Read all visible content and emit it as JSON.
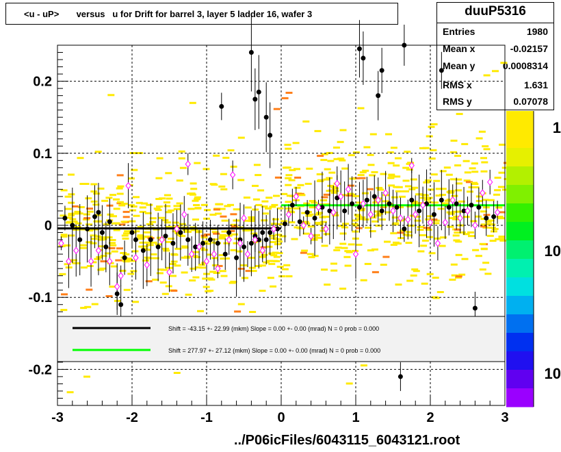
{
  "title": "<u - uP>       versus   u for Drift for barrel 3, layer 5 ladder 16, wafer 3",
  "stats": {
    "name": "duuP5316",
    "rows": [
      {
        "label": "Entries",
        "value": "1980"
      },
      {
        "label": "Mean x",
        "value": "-0.02157"
      },
      {
        "label": "Mean y",
        "value": "0.0008314"
      },
      {
        "label": "RMS x",
        "value": "1.631"
      },
      {
        "label": "RMS y",
        "value": "0.07078"
      }
    ]
  },
  "legend": {
    "entries": [
      {
        "color": "#000000",
        "text": "Shift =   -43.15 +- 22.99 (mkm) Slope =     0.00 +- 0.00 (mrad)  N = 0 prob = 0.000"
      },
      {
        "color": "#00ff00",
        "text": "Shift =   277.97 +- 27.12 (mkm) Slope =     0.00 +- 0.00 (mrad)  N = 0 prob = 0.000"
      }
    ]
  },
  "footer": "../P06icFiles/6043115_6043121.root",
  "colors": {
    "heat_yellow": "#ffea00",
    "heat_orange": "#ff7f1a",
    "mean_marker": "#000000",
    "alt_marker": "#ff00ff",
    "fit_black": "#000000",
    "fit_green": "#00ff00"
  },
  "chart_data": {
    "type": "scatter",
    "xlim": [
      -3,
      3
    ],
    "ylim": [
      -0.25,
      0.25
    ],
    "x_ticks": [
      -3,
      -2,
      -1,
      0,
      1,
      2,
      3
    ],
    "x_tick_labels": [
      "-3",
      "-2",
      "-1",
      "0",
      "1",
      "2",
      "3"
    ],
    "y_ticks": [
      -0.2,
      -0.1,
      0,
      0.1,
      0.2
    ],
    "y_tick_labels": [
      "-0.2",
      "-0.1",
      "0",
      "0.1",
      "0.2"
    ],
    "grid": true,
    "colorbar": {
      "scale": "log",
      "tick_labels": [
        "1",
        "10",
        "10"
      ]
    },
    "fit_lines": [
      {
        "x": [
          -3,
          0
        ],
        "y": [
          -0.0043,
          -0.0043
        ],
        "color": "black"
      },
      {
        "x": [
          0,
          3
        ],
        "y": [
          0.0278,
          0.0278
        ],
        "color": "green"
      }
    ],
    "series": [
      {
        "marker": "filled-circle",
        "x": [
          -2.9,
          -2.8,
          -2.7,
          -2.6,
          -2.5,
          -2.45,
          -2.4,
          -2.35,
          -2.3,
          -2.2,
          -2.15,
          -2.1,
          -2.0,
          -1.95,
          -1.85,
          -1.75,
          -1.65,
          -1.55,
          -1.45,
          -1.35,
          -1.25,
          -1.15,
          -1.05,
          -0.95,
          -0.85,
          -0.75,
          -0.7,
          -0.6,
          -0.55,
          -0.5,
          -0.4,
          -0.35,
          -0.3,
          -0.25,
          -0.2,
          -0.15,
          -0.05,
          0.05,
          0.15,
          0.25,
          0.35,
          0.45,
          0.55,
          0.65,
          0.75,
          0.85,
          0.95,
          1.05,
          1.15,
          1.25,
          1.35,
          1.45,
          1.55,
          1.65,
          1.75,
          1.85,
          1.95,
          2.05,
          2.15,
          2.25,
          2.35,
          2.45,
          2.55,
          2.65,
          2.75,
          2.85,
          -0.8,
          -0.4,
          -0.3,
          -0.2,
          -0.15,
          -0.35,
          1.05,
          1.1,
          1.3,
          1.35,
          1.65,
          2.15,
          2.6,
          1.6
        ],
        "y": [
          0.01,
          0.0,
          -0.02,
          -0.005,
          0.012,
          0.018,
          -0.01,
          -0.03,
          0.005,
          -0.095,
          -0.11,
          -0.045,
          -0.01,
          -0.02,
          -0.035,
          -0.02,
          -0.03,
          -0.015,
          -0.025,
          -0.01,
          -0.02,
          -0.03,
          -0.025,
          -0.02,
          -0.025,
          -0.04,
          -0.01,
          -0.045,
          -0.02,
          -0.03,
          -0.025,
          -0.015,
          -0.02,
          -0.01,
          -0.02,
          -0.01,
          -0.005,
          0.002,
          0.028,
          0.005,
          0.018,
          0.01,
          0.025,
          0.02,
          0.038,
          0.02,
          0.03,
          0.025,
          0.035,
          0.04,
          0.02,
          0.03,
          0.025,
          -0.005,
          0.035,
          0.02,
          0.03,
          0.015,
          0.035,
          0.025,
          0.03,
          0.02,
          0.028,
          0.025,
          0.01,
          0.012,
          0.165,
          0.24,
          0.185,
          0.15,
          0.125,
          0.175,
          0.245,
          0.232,
          0.18,
          0.215,
          0.25,
          0.215,
          -0.115,
          -0.21
        ]
      },
      {
        "marker": "open-diamond",
        "x": [
          -2.95,
          -2.85,
          -2.75,
          -2.55,
          -2.45,
          -2.3,
          -2.2,
          -2.05,
          -1.95,
          -1.8,
          -1.6,
          -1.5,
          -1.4,
          -1.3,
          -1.2,
          -1.1,
          -1.0,
          -0.9,
          -0.7,
          -0.65,
          -0.5,
          -0.45,
          -0.35,
          -0.25,
          -0.1,
          0.1,
          0.2,
          0.3,
          0.4,
          0.5,
          0.6,
          0.7,
          0.8,
          0.9,
          1.0,
          1.1,
          1.2,
          1.3,
          1.4,
          1.5,
          1.6,
          1.7,
          1.8,
          1.9,
          2.0,
          2.1,
          2.2,
          2.3,
          2.4,
          2.5,
          2.6,
          2.7,
          2.8,
          2.9,
          -1.25,
          -2.15,
          -0.85,
          -0.55,
          0.75,
          1.75
        ],
        "y": [
          -0.025,
          -0.05,
          -0.035,
          -0.05,
          -0.035,
          -0.05,
          -0.085,
          0.055,
          -0.045,
          -0.055,
          -0.02,
          -0.065,
          -0.005,
          0.015,
          -0.04,
          -0.03,
          -0.05,
          -0.04,
          -0.02,
          0.07,
          0.01,
          -0.04,
          -0.02,
          -0.035,
          -0.005,
          0.015,
          0.04,
          0.0,
          -0.015,
          0.025,
          -0.005,
          0.018,
          0.04,
          0.05,
          -0.04,
          0.03,
          0.015,
          0.035,
          0.045,
          0.02,
          0.01,
          0.008,
          0.015,
          0.028,
          0.004,
          -0.025,
          0.004,
          0.035,
          0.01,
          0.02,
          0.0,
          0.045,
          0.06,
          0.018,
          0.085,
          -0.07,
          -0.06,
          -0.025,
          0.058,
          0.083
        ]
      }
    ]
  }
}
